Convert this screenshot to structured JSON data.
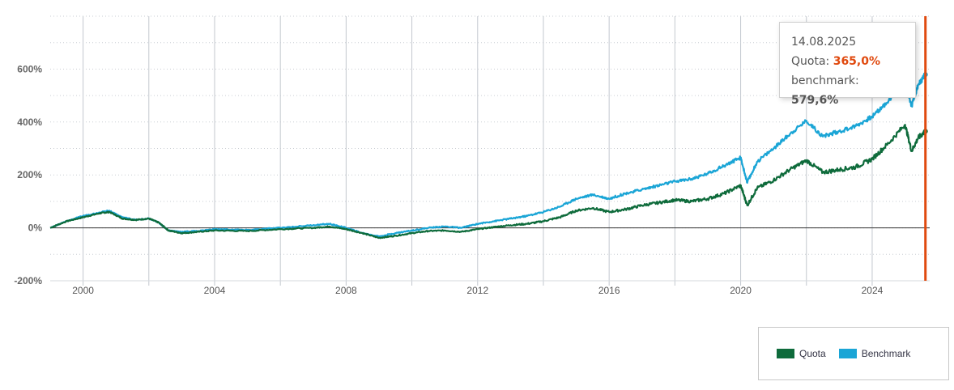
{
  "colors": {
    "quota": "#0e6b3b",
    "benchmark": "#1aa5d6",
    "cursor": "#e04a0f",
    "grid": "#c3c8cf"
  },
  "tooltip": {
    "date": "14.08.2025",
    "quota_label": "Quota: ",
    "quota_value": "365,0%",
    "benchmark_label": "benchmark: ",
    "benchmark_value": "579,6%"
  },
  "legend": {
    "quota": "Quota",
    "benchmark": "Benchmark"
  },
  "chart_data": {
    "type": "line",
    "title": "",
    "xlabel": "",
    "ylabel": "",
    "xlim": [
      1999.0,
      2025.75
    ],
    "ylim": [
      -200,
      800
    ],
    "x_ticks": [
      "2000",
      "2004",
      "2008",
      "2012",
      "2016",
      "2020",
      "2024"
    ],
    "y_ticks": [
      "-200%",
      "0%",
      "200%",
      "400%",
      "600%"
    ],
    "cursor_x": 2025.62,
    "grid": true,
    "legend_position": "bottom-right",
    "series": [
      {
        "name": "Quota",
        "points": [
          [
            1999.0,
            0
          ],
          [
            1999.5,
            25
          ],
          [
            2000.0,
            40
          ],
          [
            2000.5,
            55
          ],
          [
            2000.8,
            60
          ],
          [
            2001.2,
            35
          ],
          [
            2001.6,
            30
          ],
          [
            2002.0,
            35
          ],
          [
            2002.3,
            20
          ],
          [
            2002.6,
            -10
          ],
          [
            2003.0,
            -20
          ],
          [
            2003.5,
            -15
          ],
          [
            2004.0,
            -10
          ],
          [
            2005.0,
            -12
          ],
          [
            2006.0,
            -5
          ],
          [
            2007.0,
            0
          ],
          [
            2007.5,
            5
          ],
          [
            2008.0,
            -5
          ],
          [
            2008.5,
            -20
          ],
          [
            2009.0,
            -38
          ],
          [
            2009.5,
            -30
          ],
          [
            2010.0,
            -20
          ],
          [
            2010.5,
            -12
          ],
          [
            2011.0,
            -10
          ],
          [
            2011.5,
            -15
          ],
          [
            2012.0,
            -5
          ],
          [
            2012.5,
            3
          ],
          [
            2013.0,
            10
          ],
          [
            2013.5,
            15
          ],
          [
            2014.0,
            25
          ],
          [
            2014.5,
            40
          ],
          [
            2015.0,
            65
          ],
          [
            2015.5,
            75
          ],
          [
            2016.0,
            60
          ],
          [
            2016.5,
            70
          ],
          [
            2017.0,
            85
          ],
          [
            2017.5,
            95
          ],
          [
            2018.0,
            105
          ],
          [
            2018.5,
            100
          ],
          [
            2019.0,
            110
          ],
          [
            2019.5,
            130
          ],
          [
            2020.0,
            160
          ],
          [
            2020.2,
            85
          ],
          [
            2020.5,
            150
          ],
          [
            2021.0,
            180
          ],
          [
            2021.5,
            220
          ],
          [
            2022.0,
            255
          ],
          [
            2022.5,
            210
          ],
          [
            2023.0,
            220
          ],
          [
            2023.5,
            230
          ],
          [
            2024.0,
            260
          ],
          [
            2024.5,
            320
          ],
          [
            2025.0,
            390
          ],
          [
            2025.2,
            290
          ],
          [
            2025.4,
            340
          ],
          [
            2025.62,
            365
          ]
        ]
      },
      {
        "name": "Benchmark",
        "points": [
          [
            1999.0,
            0
          ],
          [
            1999.5,
            25
          ],
          [
            2000.0,
            45
          ],
          [
            2000.5,
            58
          ],
          [
            2000.8,
            65
          ],
          [
            2001.2,
            40
          ],
          [
            2001.6,
            30
          ],
          [
            2002.0,
            35
          ],
          [
            2002.3,
            20
          ],
          [
            2002.6,
            -10
          ],
          [
            2003.0,
            -15
          ],
          [
            2003.5,
            -12
          ],
          [
            2004.0,
            -5
          ],
          [
            2005.0,
            -8
          ],
          [
            2006.0,
            0
          ],
          [
            2007.0,
            10
          ],
          [
            2007.5,
            15
          ],
          [
            2008.0,
            0
          ],
          [
            2008.5,
            -20
          ],
          [
            2009.0,
            -32
          ],
          [
            2009.5,
            -20
          ],
          [
            2010.0,
            -10
          ],
          [
            2010.5,
            0
          ],
          [
            2011.0,
            5
          ],
          [
            2011.5,
            0
          ],
          [
            2012.0,
            15
          ],
          [
            2012.5,
            25
          ],
          [
            2013.0,
            35
          ],
          [
            2013.5,
            45
          ],
          [
            2014.0,
            60
          ],
          [
            2014.5,
            80
          ],
          [
            2015.0,
            110
          ],
          [
            2015.5,
            125
          ],
          [
            2016.0,
            110
          ],
          [
            2016.5,
            130
          ],
          [
            2017.0,
            145
          ],
          [
            2017.5,
            160
          ],
          [
            2018.0,
            175
          ],
          [
            2018.5,
            185
          ],
          [
            2019.0,
            205
          ],
          [
            2019.5,
            235
          ],
          [
            2020.0,
            265
          ],
          [
            2020.2,
            170
          ],
          [
            2020.5,
            250
          ],
          [
            2021.0,
            300
          ],
          [
            2021.5,
            355
          ],
          [
            2022.0,
            405
          ],
          [
            2022.5,
            345
          ],
          [
            2023.0,
            365
          ],
          [
            2023.5,
            385
          ],
          [
            2024.0,
            420
          ],
          [
            2024.5,
            480
          ],
          [
            2025.0,
            550
          ],
          [
            2025.2,
            460
          ],
          [
            2025.4,
            540
          ],
          [
            2025.62,
            579.6
          ]
        ]
      }
    ]
  }
}
